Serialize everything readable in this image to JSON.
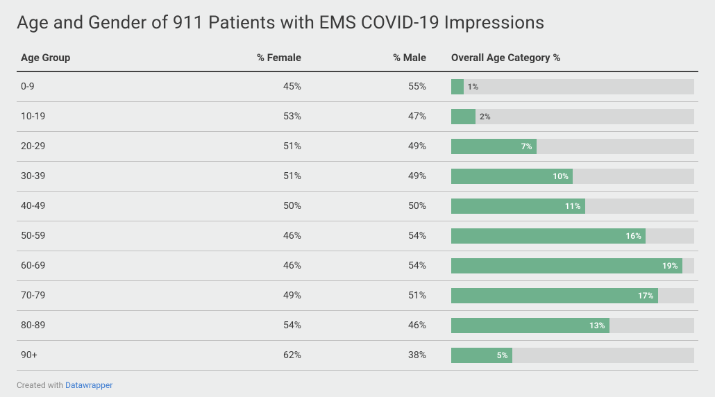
{
  "title": "Age and Gender of 911 Patients with EMS COVID-19 Impressions",
  "columns": {
    "age": "Age Group",
    "female": "% Female",
    "male": "% Male",
    "overall": "Overall Age Category %"
  },
  "chart": {
    "type": "table-with-bar",
    "bar_max_percent": 20,
    "bar_fill_color": "#6fb18d",
    "bar_track_color": "#d7d8d8",
    "bar_label_inside_color": "#ffffff",
    "bar_label_outside_color": "#555555",
    "background_color": "#eceded",
    "header_border_color": "#444444",
    "row_border_color": "#bfbfbf",
    "title_fontsize": 26,
    "header_fontsize": 15,
    "cell_fontsize": 14,
    "bar_label_fontsize": 12,
    "label_inside_threshold_percent": 5
  },
  "rows": [
    {
      "age": "0-9",
      "female": "45%",
      "male": "55%",
      "overall_pct": 1,
      "overall_label": "1%"
    },
    {
      "age": "10-19",
      "female": "53%",
      "male": "47%",
      "overall_pct": 2,
      "overall_label": "2%"
    },
    {
      "age": "20-29",
      "female": "51%",
      "male": "49%",
      "overall_pct": 7,
      "overall_label": "7%"
    },
    {
      "age": "30-39",
      "female": "51%",
      "male": "49%",
      "overall_pct": 10,
      "overall_label": "10%"
    },
    {
      "age": "40-49",
      "female": "50%",
      "male": "50%",
      "overall_pct": 11,
      "overall_label": "11%"
    },
    {
      "age": "50-59",
      "female": "46%",
      "male": "54%",
      "overall_pct": 16,
      "overall_label": "16%"
    },
    {
      "age": "60-69",
      "female": "46%",
      "male": "54%",
      "overall_pct": 19,
      "overall_label": "19%"
    },
    {
      "age": "70-79",
      "female": "49%",
      "male": "51%",
      "overall_pct": 17,
      "overall_label": "17%"
    },
    {
      "age": "80-89",
      "female": "54%",
      "male": "46%",
      "overall_pct": 13,
      "overall_label": "13%"
    },
    {
      "age": "90+",
      "female": "62%",
      "male": "38%",
      "overall_pct": 5,
      "overall_label": "5%"
    }
  ],
  "footer": {
    "prefix": "Created with ",
    "link_text": "Datawrapper",
    "link_color": "#3b7bd1"
  }
}
